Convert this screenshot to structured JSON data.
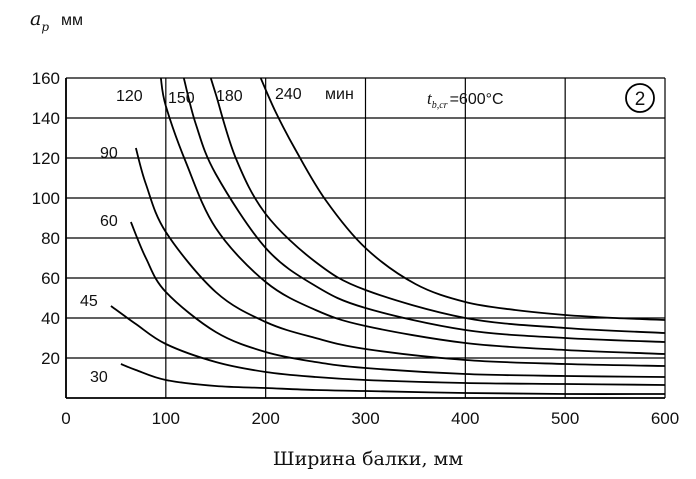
{
  "chart_data": {
    "type": "line",
    "ylabel_main": "a",
    "ylabel_sub": "p",
    "ylabel_unit": "мм",
    "xlabel": "Ширина балки, мм",
    "xlim": [
      0,
      600
    ],
    "ylim": [
      0,
      160
    ],
    "xticks": [
      "0",
      "100",
      "200",
      "300",
      "400",
      "500",
      "600"
    ],
    "yticks": [
      "20",
      "40",
      "60",
      "80",
      "100",
      "120",
      "140",
      "160"
    ],
    "grid": true,
    "annotation": {
      "t_symbol": "t",
      "t_sub": "b,cr",
      "t_value": "=600°C",
      "badge": "2"
    },
    "series": [
      {
        "name": "30",
        "x": [
          55,
          70,
          100,
          150,
          200,
          250,
          300,
          400,
          500,
          600
        ],
        "y": [
          17,
          14,
          9,
          6,
          5,
          4,
          3.5,
          2.5,
          2,
          2
        ]
      },
      {
        "name": "45",
        "x": [
          45,
          70,
          100,
          150,
          200,
          250,
          300,
          400,
          500,
          600
        ],
        "y": [
          46,
          37,
          27,
          18,
          13,
          10.5,
          9,
          7.5,
          7,
          6.5
        ]
      },
      {
        "name": "60",
        "x": [
          65,
          80,
          100,
          150,
          200,
          250,
          300,
          400,
          500,
          600
        ],
        "y": [
          88,
          70,
          53,
          33,
          23,
          18,
          15,
          12,
          11,
          10.5
        ]
      },
      {
        "name": "90",
        "x": [
          70,
          80,
          100,
          150,
          200,
          250,
          300,
          400,
          500,
          600
        ],
        "y": [
          125,
          107,
          83,
          53,
          38,
          30,
          24.5,
          19,
          17,
          16
        ]
      },
      {
        "name": "120",
        "x": [
          95,
          100,
          120,
          150,
          200,
          250,
          300,
          400,
          500,
          600
        ],
        "y": [
          160,
          146,
          118,
          85,
          58,
          44,
          36,
          27.5,
          24,
          22
        ]
      },
      {
        "name": "150",
        "x": [
          118,
          130,
          150,
          200,
          250,
          300,
          400,
          500,
          600
        ],
        "y": [
          160,
          137,
          112,
          75,
          56,
          45,
          34,
          30,
          28
        ]
      },
      {
        "name": "180",
        "x": [
          145,
          150,
          170,
          200,
          250,
          300,
          400,
          500,
          600
        ],
        "y": [
          160,
          152,
          120,
          92,
          68,
          54,
          40,
          35,
          32.5
        ]
      },
      {
        "name": "240",
        "x": [
          195,
          210,
          230,
          260,
          300,
          350,
          400,
          450,
          500,
          550,
          600
        ],
        "y": [
          160,
          143,
          124,
          99,
          75,
          57,
          48,
          44,
          41.5,
          40,
          39
        ]
      }
    ],
    "curve_labels": [
      "120",
      "150",
      "180",
      "240",
      "мин",
      "90",
      "60",
      "45",
      "30"
    ]
  }
}
